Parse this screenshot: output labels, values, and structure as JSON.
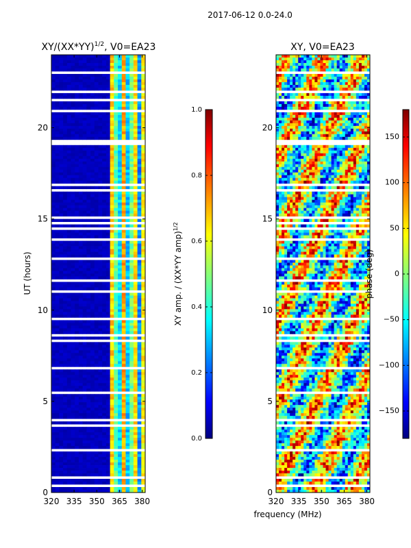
{
  "figure": {
    "suptitle": "2017-06-12 0.0-24.0",
    "shared_xlabel": "frequency (MHz)"
  },
  "chart_data": [
    {
      "type": "heatmap",
      "name": "amplitude-panel",
      "title_main": "XY/(XX*YY)",
      "title_sup": "1/2",
      "title_tail": ", V0=EA23",
      "xlabel": "",
      "ylabel": "UT (hours)",
      "xlim": [
        320,
        382
      ],
      "ylim": [
        0,
        24
      ],
      "xticks": [
        320,
        335,
        350,
        365,
        380
      ],
      "yticks": [
        0,
        5,
        10,
        15,
        20
      ],
      "colormap": "jet",
      "colorbar": {
        "label_main": "XY amp. / (XX*YY amp)",
        "label_sup": "1/2",
        "range": [
          0.0,
          1.0
        ],
        "ticks": [
          "0.0",
          "0.2",
          "0.4",
          "0.6",
          "0.8",
          "1.0"
        ],
        "tick_values": [
          0.0,
          0.2,
          0.4,
          0.6,
          0.8,
          1.0
        ]
      },
      "description": "low normalized amplitude (~0.05) below 360 MHz, higher values (0.3-0.75) in vertical stripes between 360 and 382 MHz; many horizontal white gaps (flagged data)"
    },
    {
      "type": "heatmap",
      "name": "phase-panel",
      "title_main": "XY, V0=EA23",
      "xlabel": "",
      "ylabel": "",
      "xlim": [
        320,
        382
      ],
      "ylim": [
        0,
        24
      ],
      "xticks": [
        320,
        335,
        350,
        365,
        380
      ],
      "yticks": [
        0,
        5,
        10,
        15,
        20
      ],
      "colormap": "jet",
      "colorbar": {
        "label_main": "phase (deg)",
        "range": [
          -180,
          180
        ],
        "ticks": [
          "−150",
          "−100",
          "−50",
          "0",
          "50",
          "100",
          "150"
        ],
        "tick_values": [
          -150,
          -100,
          -50,
          0,
          50,
          100,
          150
        ]
      },
      "description": "noisy XY phase spanning -180 to 180 degrees with horizontal white gaps"
    }
  ],
  "palette": {
    "jet_stops": [
      "#00007f",
      "#0000ff",
      "#00ffff",
      "#ffff00",
      "#ff0000",
      "#7f0000"
    ]
  }
}
